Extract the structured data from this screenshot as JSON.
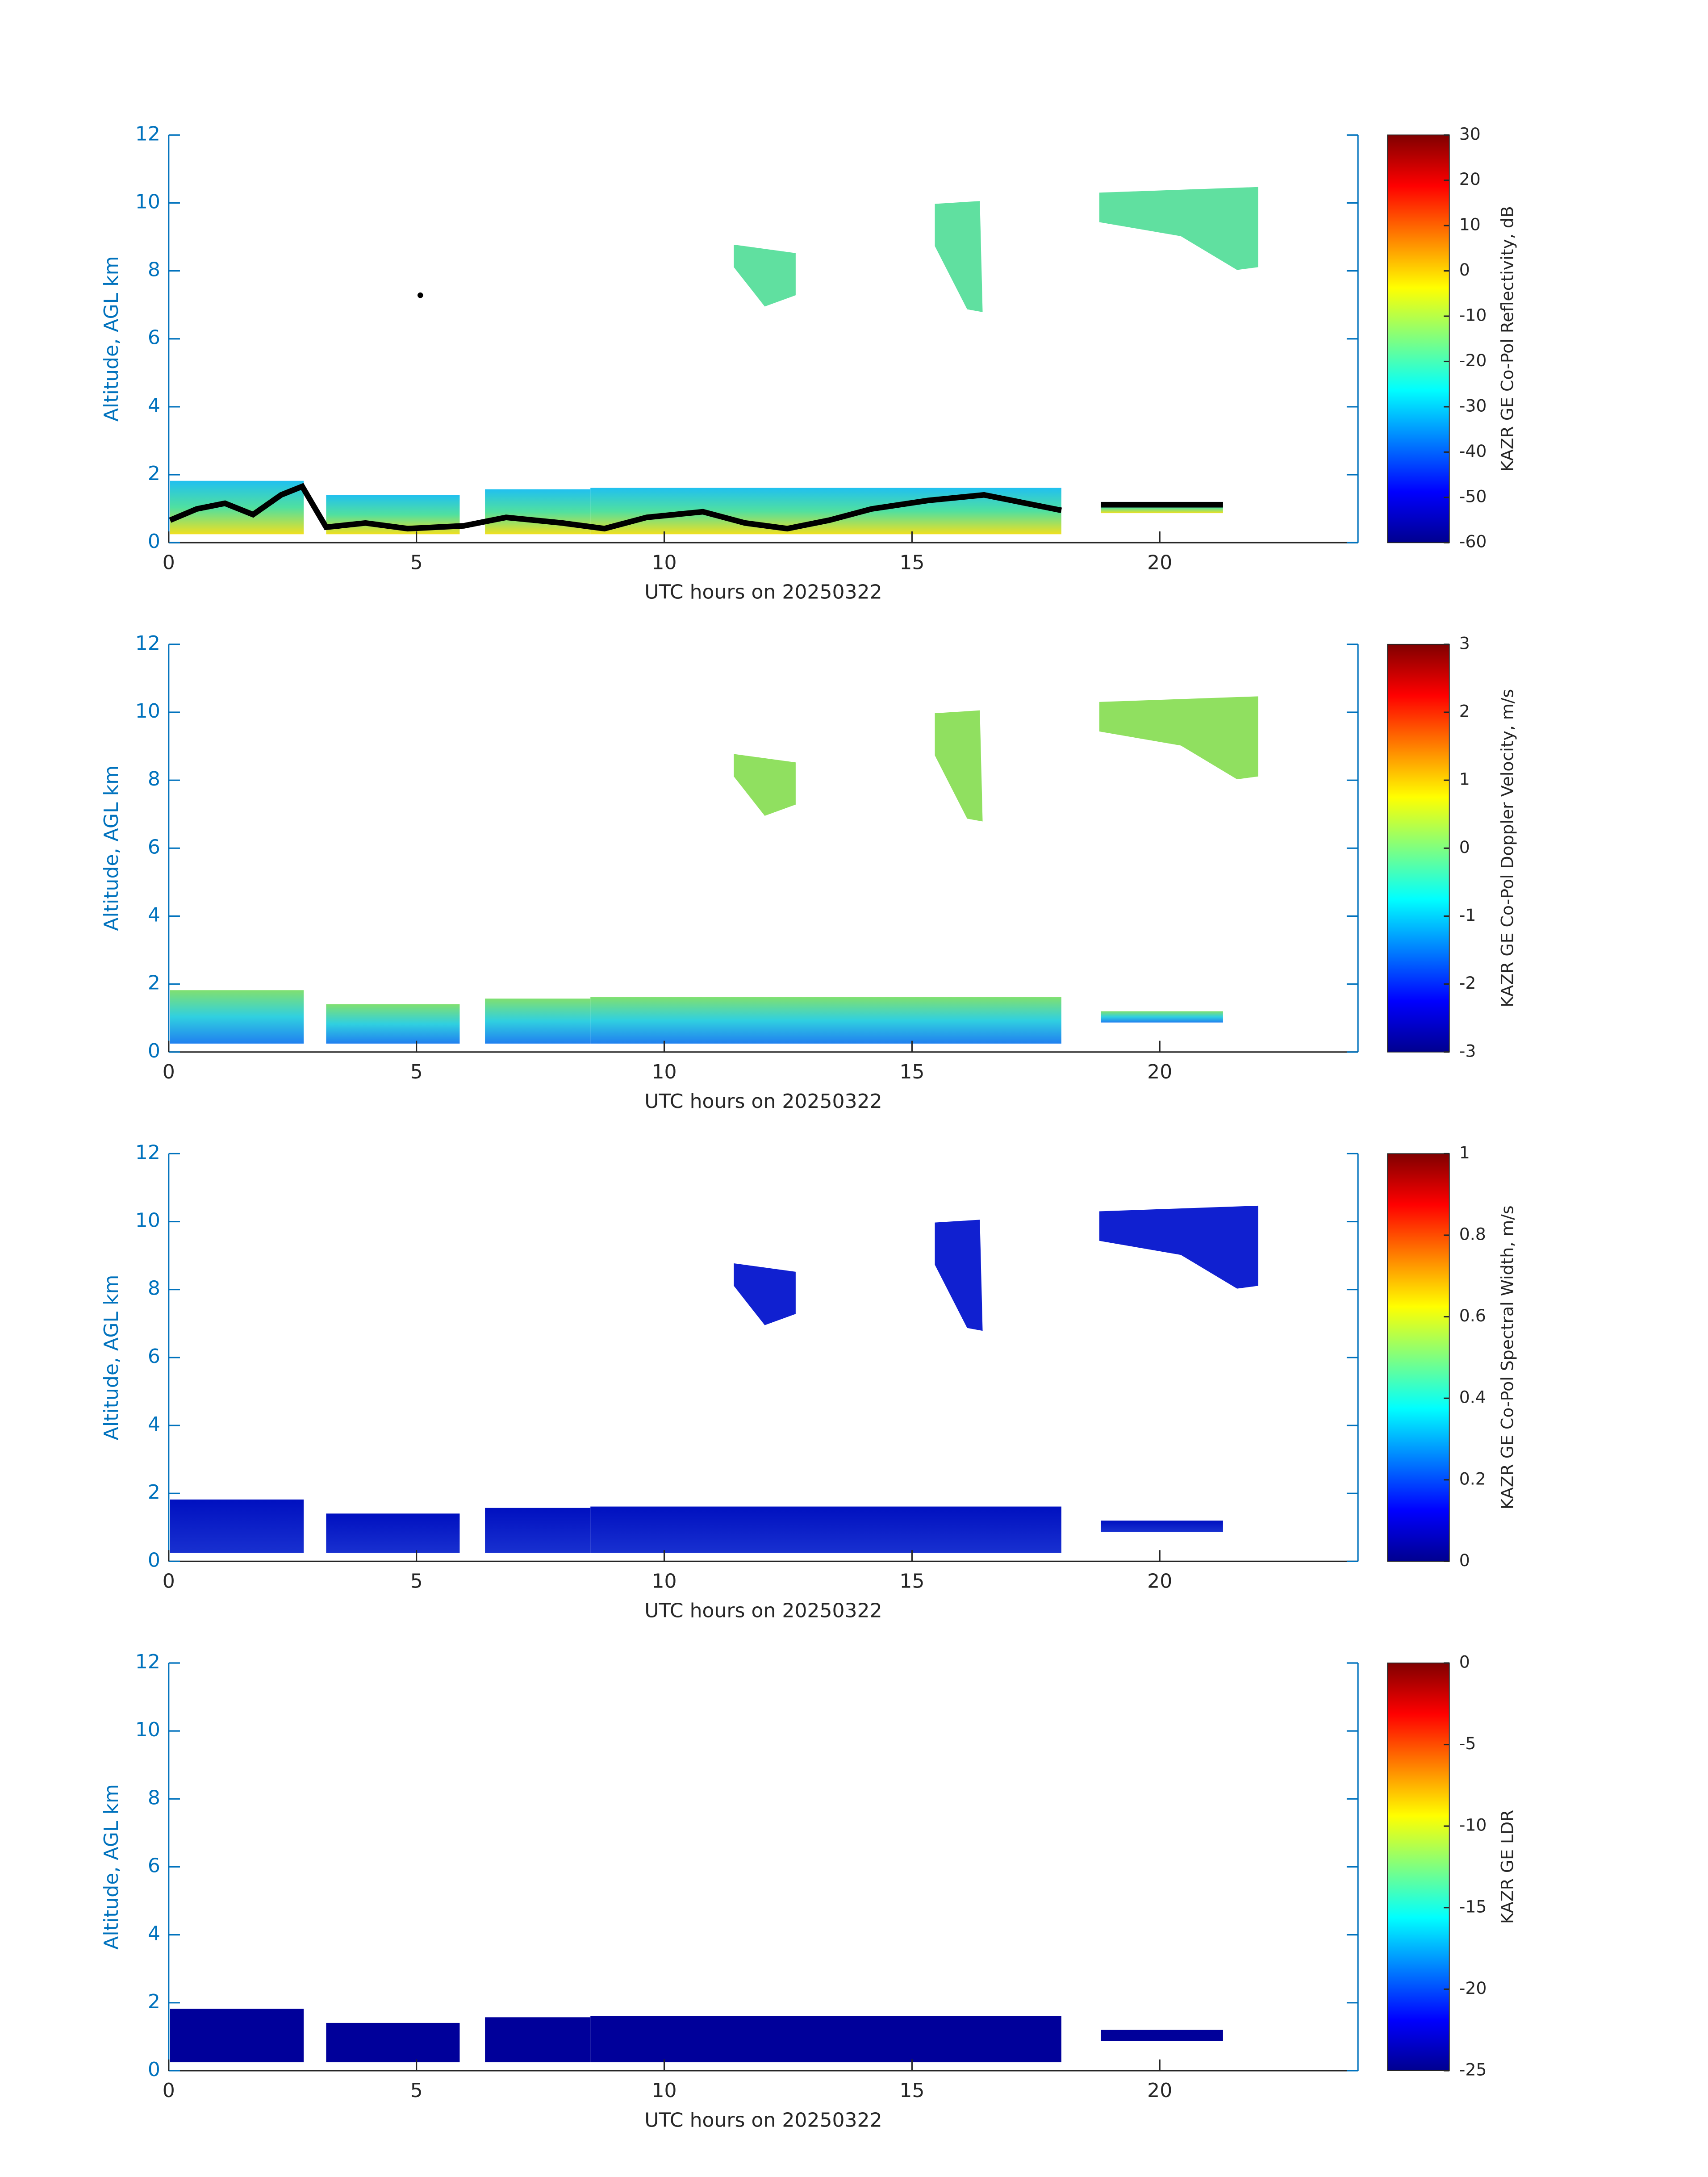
{
  "chart_data": [
    {
      "type": "heatmap",
      "x_label": "UTC hours on 20250322",
      "y_label": "Altitude, AGL km",
      "xlim": [
        0,
        24
      ],
      "xticks": [
        0,
        5,
        10,
        15,
        20
      ],
      "ylim": [
        0,
        12
      ],
      "yticks": [
        0,
        2,
        4,
        6,
        8,
        10,
        12
      ],
      "colormap": "jet",
      "colorbar": {
        "label": "KAZR GE Co-Pol Reflectivity, dB",
        "lim": [
          -60,
          30
        ],
        "ticks": [
          -60,
          -50,
          -40,
          -30,
          -20,
          -10,
          0,
          10,
          20,
          30
        ]
      }
    },
    {
      "type": "heatmap",
      "x_label": "UTC hours on 20250322",
      "y_label": "Altitude, AGL km",
      "xlim": [
        0,
        24
      ],
      "xticks": [
        0,
        5,
        10,
        15,
        20
      ],
      "ylim": [
        0,
        12
      ],
      "yticks": [
        0,
        2,
        4,
        6,
        8,
        10,
        12
      ],
      "colormap": "jet",
      "colorbar": {
        "label": "KAZR GE Co-Pol Doppler Velocity, m/s",
        "lim": [
          -3,
          3
        ],
        "ticks": [
          -3,
          -2,
          -1,
          0,
          1,
          2,
          3
        ]
      }
    },
    {
      "type": "heatmap",
      "x_label": "UTC hours on 20250322",
      "y_label": "Altitude, AGL km",
      "xlim": [
        0,
        24
      ],
      "xticks": [
        0,
        5,
        10,
        15,
        20
      ],
      "ylim": [
        0,
        12
      ],
      "yticks": [
        0,
        2,
        4,
        6,
        8,
        10,
        12
      ],
      "colormap": "jet",
      "colorbar": {
        "label": "KAZR GE Co-Pol Spectral Width, m/s",
        "lim": [
          0,
          1
        ],
        "ticks": [
          0,
          0.2,
          0.4,
          0.6,
          0.8,
          1
        ]
      }
    },
    {
      "type": "heatmap",
      "x_label": "UTC hours on 20250322",
      "y_label": "Altitude, AGL km",
      "xlim": [
        0,
        24
      ],
      "xticks": [
        0,
        5,
        10,
        15,
        20
      ],
      "ylim": [
        0,
        12
      ],
      "yticks": [
        0,
        2,
        4,
        6,
        8,
        10,
        12
      ],
      "colormap": "jet",
      "colorbar": {
        "label": "KAZR GE LDR",
        "lim": [
          -25,
          0
        ],
        "ticks": [
          -25,
          -20,
          -15,
          -10,
          -5,
          0
        ]
      }
    }
  ]
}
